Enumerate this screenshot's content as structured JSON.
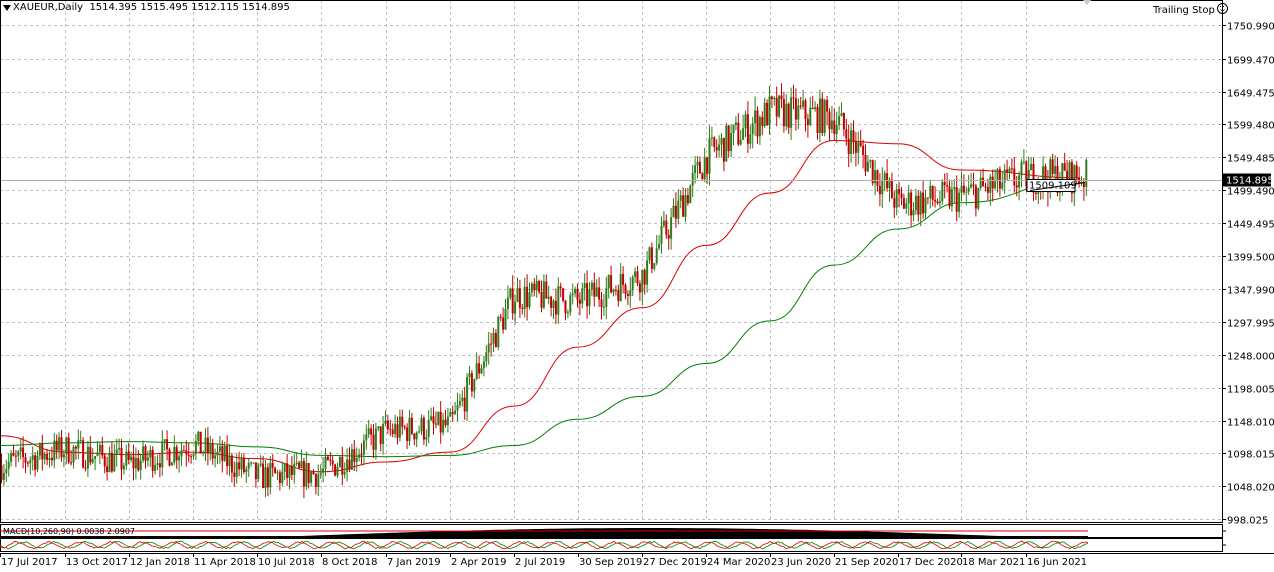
{
  "header": {
    "symbol": "XAUEUR,Daily",
    "open": "1514.395",
    "high": "1515.495",
    "low": "1512.115",
    "close": "1514.895",
    "ea_label": "Trailing Stop"
  },
  "colors": {
    "bull_candle": "#2e7d1a",
    "bear_candle": "#c00000",
    "ma_fast": "#dd0000",
    "ma_slow": "#008000",
    "grid": "#c0c0c0",
    "text": "#000000"
  },
  "macd": {
    "label": "MACD(10,260,90) 0.0038 2.0907"
  },
  "price_marker": {
    "current": "1514.895",
    "level_label": "1509.109"
  },
  "chart_data": {
    "type": "candlestick",
    "title": "XAUEUR,Daily",
    "x_ticks": [
      "17 Jul 2017",
      "13 Oct 2017",
      "12 Jan 2018",
      "11 Apr 2018",
      "10 Jul 2018",
      "8 Oct 2018",
      "7 Jan 2019",
      "2 Apr 2019",
      "2 Jul 2019",
      "30 Sep 2019",
      "27 Dec 2019",
      "24 Mar 2020",
      "23 Jun 2020",
      "21 Sep 2020",
      "17 Dec 2020",
      "18 Mar 2021",
      "16 Jun 2021"
    ],
    "y_ticks": [
      "1750.990",
      "1699.470",
      "1649.475",
      "1599.480",
      "1549.485",
      "1499.490",
      "1449.495",
      "1399.500",
      "1347.990",
      "1297.995",
      "1248.000",
      "1198.005",
      "1148.010",
      "1098.015",
      "1048.020",
      "998.025"
    ],
    "ylim": [
      998.025,
      1750.99
    ],
    "current_price": 1514.895,
    "price_path": [
      {
        "date": "17 Jul 2017",
        "price": 1080
      },
      {
        "date": "13 Oct 2017",
        "price": 1105
      },
      {
        "date": "12 Jan 2018",
        "price": 1082
      },
      {
        "date": "11 Apr 2018",
        "price": 1112
      },
      {
        "date": "10 Jul 2018",
        "price": 1062
      },
      {
        "date": "8 Oct 2018",
        "price": 1068
      },
      {
        "date": "7 Jan 2019",
        "price": 1132
      },
      {
        "date": "2 Apr 2019",
        "price": 1140
      },
      {
        "date": "2 Jul 2019",
        "price": 1340
      },
      {
        "date": "30 Sep 2019",
        "price": 1330
      },
      {
        "date": "27 Dec 2019",
        "price": 1370
      },
      {
        "date": "24 Mar 2020",
        "price": 1550
      },
      {
        "date": "23 Jun 2020",
        "price": 1620
      },
      {
        "date": "21 Sep 2020",
        "price": 1610
      },
      {
        "date": "17 Dec 2020",
        "price": 1478
      },
      {
        "date": "18 Mar 2021",
        "price": 1490
      },
      {
        "date": "16 Jun 2021",
        "price": 1520
      }
    ],
    "ma_fast": [
      {
        "date": "17 Jul 2017",
        "value": 1125
      },
      {
        "date": "13 Oct 2017",
        "value": 1100
      },
      {
        "date": "12 Jan 2018",
        "value": 1096
      },
      {
        "date": "11 Apr 2018",
        "value": 1100
      },
      {
        "date": "10 Jul 2018",
        "value": 1090
      },
      {
        "date": "8 Oct 2018",
        "value": 1070
      },
      {
        "date": "7 Jan 2019",
        "value": 1085
      },
      {
        "date": "2 Apr 2019",
        "value": 1100
      },
      {
        "date": "2 Jul 2019",
        "value": 1170
      },
      {
        "date": "30 Sep 2019",
        "value": 1260
      },
      {
        "date": "27 Dec 2019",
        "value": 1320
      },
      {
        "date": "24 Mar 2020",
        "value": 1415
      },
      {
        "date": "23 Jun 2020",
        "value": 1495
      },
      {
        "date": "21 Sep 2020",
        "value": 1575
      },
      {
        "date": "17 Dec 2020",
        "value": 1570
      },
      {
        "date": "18 Mar 2021",
        "value": 1530
      },
      {
        "date": "16 Jun 2021",
        "value": 1518
      }
    ],
    "ma_slow": [
      {
        "date": "17 Jul 2017",
        "value": 1110
      },
      {
        "date": "13 Oct 2017",
        "value": 1114
      },
      {
        "date": "12 Jan 2018",
        "value": 1116
      },
      {
        "date": "11 Apr 2018",
        "value": 1114
      },
      {
        "date": "10 Jul 2018",
        "value": 1108
      },
      {
        "date": "8 Oct 2018",
        "value": 1095
      },
      {
        "date": "7 Jan 2019",
        "value": 1093
      },
      {
        "date": "2 Apr 2019",
        "value": 1095
      },
      {
        "date": "2 Jul 2019",
        "value": 1110
      },
      {
        "date": "30 Sep 2019",
        "value": 1150
      },
      {
        "date": "27 Dec 2019",
        "value": 1185
      },
      {
        "date": "24 Mar 2020",
        "value": 1235
      },
      {
        "date": "23 Jun 2020",
        "value": 1300
      },
      {
        "date": "21 Sep 2020",
        "value": 1385
      },
      {
        "date": "17 Dec 2020",
        "value": 1440
      },
      {
        "date": "18 Mar 2021",
        "value": 1480
      },
      {
        "date": "16 Jun 2021",
        "value": 1515
      }
    ]
  }
}
